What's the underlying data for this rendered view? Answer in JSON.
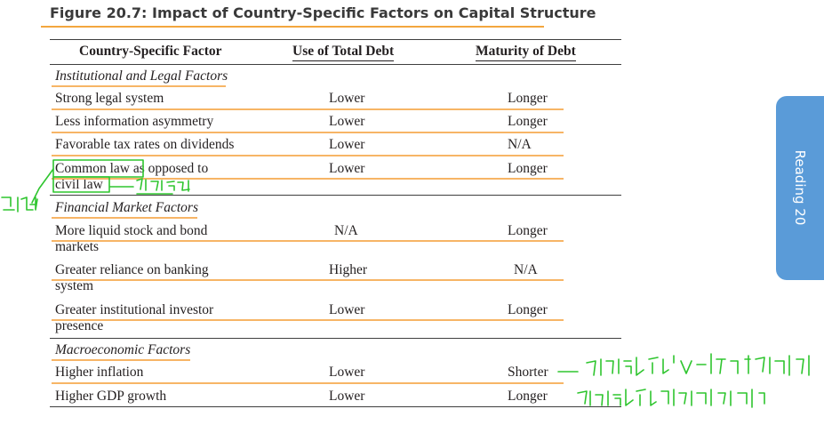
{
  "figure": {
    "title": "Figure 20.7:  Impact of Country-Specific Factors on Capital Structure"
  },
  "table": {
    "headers": [
      "Country-Specific Factor",
      "Use of Total Debt",
      "Maturity of Debt"
    ],
    "sections": [
      {
        "title": "Institutional and Legal Factors",
        "rows": [
          {
            "factor": [
              "Strong legal system"
            ],
            "debt": "Lower",
            "maturity": "Longer"
          },
          {
            "factor": [
              "Less information asymmetry"
            ],
            "debt": "Lower",
            "maturity": "Longer"
          },
          {
            "factor": [
              "Favorable tax rates on dividends"
            ],
            "debt": "Lower",
            "maturity": "N/A"
          },
          {
            "factor": [
              "Common law as opposed to",
              "civil law"
            ],
            "debt": "Lower",
            "maturity": "Longer"
          }
        ]
      },
      {
        "title": "Financial Market Factors",
        "rows": [
          {
            "factor": [
              "More liquid stock and bond",
              "markets"
            ],
            "debt": "N/A",
            "maturity": "Longer"
          },
          {
            "factor": [
              "Greater reliance on banking",
              "system"
            ],
            "debt": "Higher",
            "maturity": "N/A"
          },
          {
            "factor": [
              "Greater institutional investor",
              "presence"
            ],
            "debt": "Lower",
            "maturity": "Longer"
          }
        ]
      },
      {
        "title": "Macroeconomic Factors",
        "rows": [
          {
            "factor": [
              "Higher inflation"
            ],
            "debt": "Lower",
            "maturity": "Shorter"
          },
          {
            "factor": [
              "Higher GDP growth"
            ],
            "debt": "Lower",
            "maturity": "Longer"
          }
        ]
      }
    ]
  },
  "side_tab": {
    "label": "Reading 20"
  },
  "colors": {
    "highlight": "#f7b566",
    "title_rule": "#f3a63e",
    "tab": "#5a9bd8",
    "ink": "#2ec52e"
  }
}
